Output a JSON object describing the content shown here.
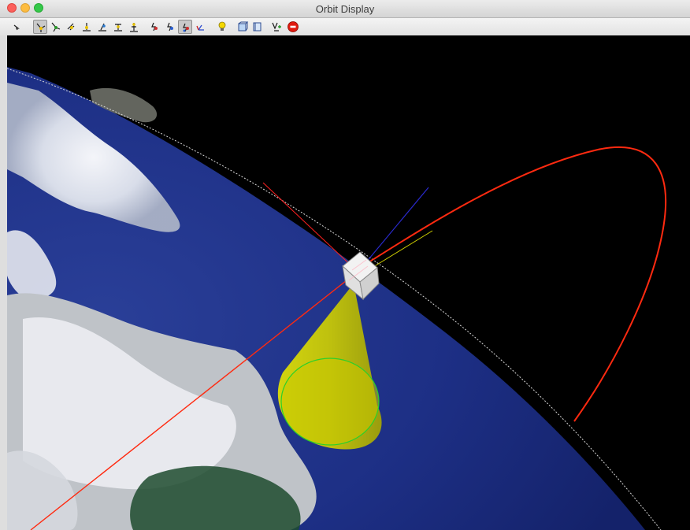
{
  "window": {
    "title": "Orbit Display"
  },
  "toolbar": {
    "buttons": [
      {
        "name": "select-arrow-icon"
      },
      {
        "name": "view-axes-icon",
        "active": true
      },
      {
        "name": "view-axes-2-icon"
      },
      {
        "name": "view-satellite-icon"
      },
      {
        "name": "view-ground-icon"
      },
      {
        "name": "view-station-icon"
      },
      {
        "name": "view-antenna-icon"
      },
      {
        "name": "view-tower-icon"
      },
      {
        "name": "attitude-icon"
      },
      {
        "name": "attitude-2-icon"
      },
      {
        "name": "attitude-3-icon",
        "active": true
      },
      {
        "name": "axis-icon"
      },
      {
        "name": "light-bulb-icon"
      },
      {
        "name": "box-view-icon"
      },
      {
        "name": "box-view-2-icon"
      },
      {
        "name": "add-view-icon"
      },
      {
        "name": "stop-icon"
      }
    ]
  },
  "colors": {
    "ocean": "#1f3388",
    "orbit": "#ff2a10",
    "cone": "#d8d800",
    "space": "#000000"
  }
}
